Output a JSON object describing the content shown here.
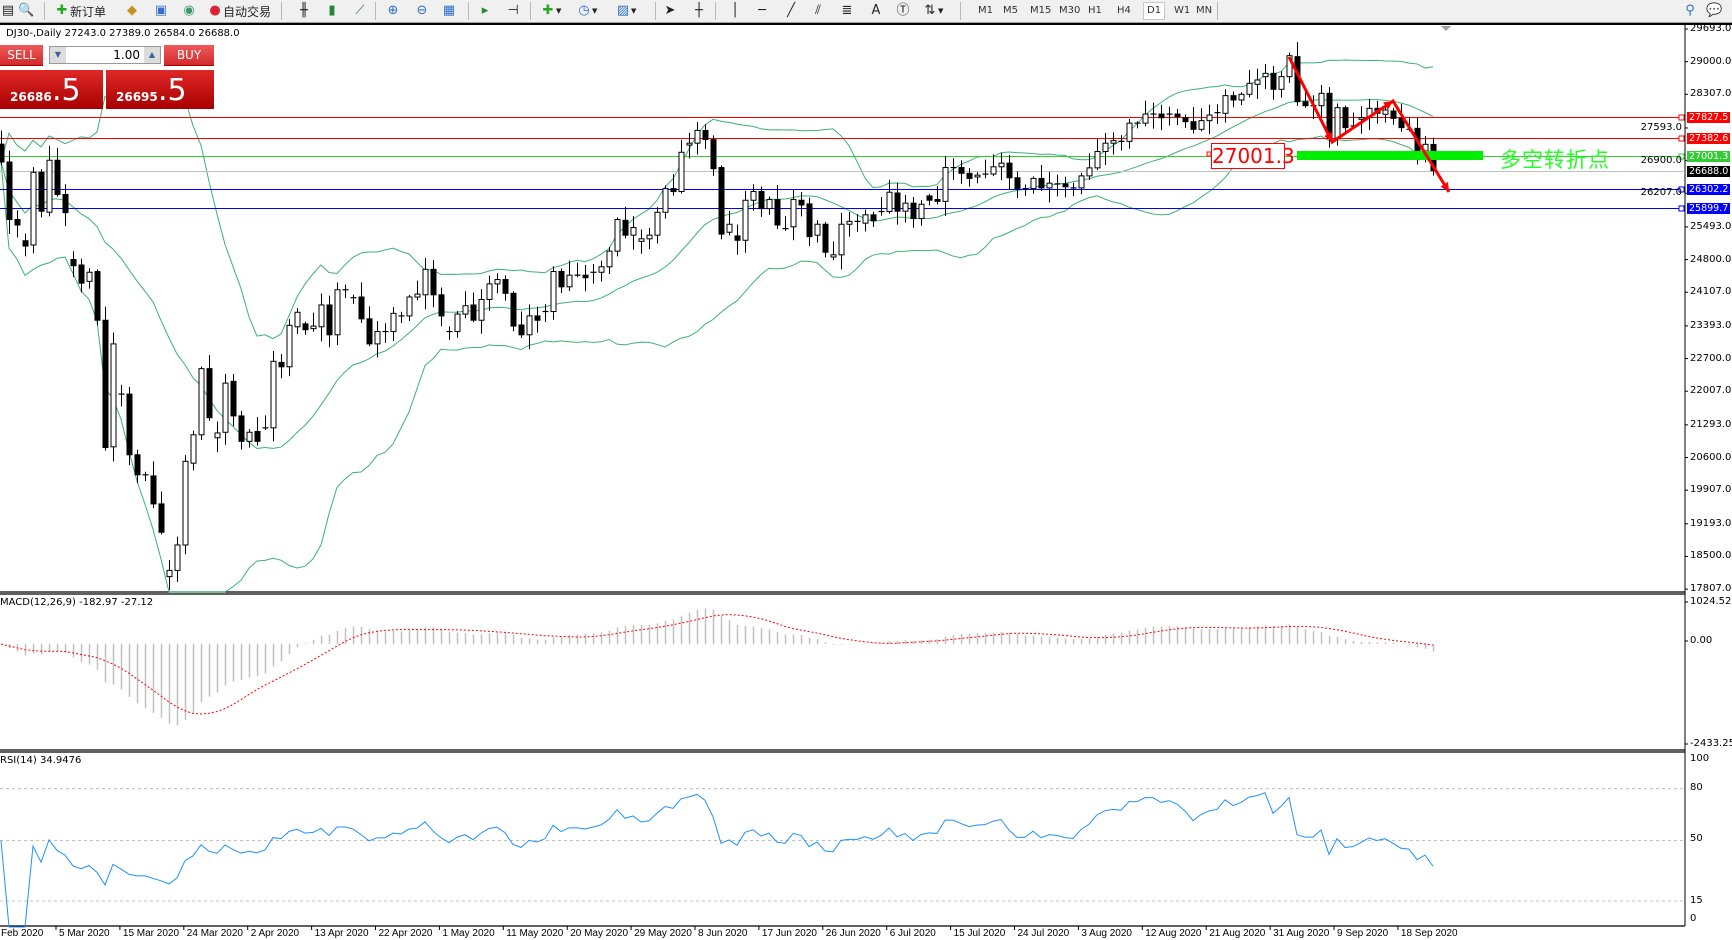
{
  "toolbar": {
    "new_order_label": "新订单",
    "auto_trading_label": "自动交易",
    "text_tool_label": "A",
    "timeframes": [
      "M1",
      "M5",
      "M15",
      "M30",
      "H1",
      "H4",
      "D1",
      "W1",
      "MN"
    ],
    "selected_timeframe": "D1"
  },
  "chart": {
    "header": "DJ30-,Daily  27243.0 27389.0 26584.0 26688.0",
    "trade_panel": {
      "sell_label": "SELL",
      "buy_label": "BUY",
      "lot": "1.00",
      "sell_price_main": "26686",
      "sell_price_frac": ".5",
      "buy_price_main": "26695",
      "buy_price_frac": ".5"
    },
    "price_ticks": [
      "29693.0",
      "29000.0",
      "28307.0",
      "27593.0",
      "26900.0",
      "26207.0",
      "25493.0",
      "24800.0",
      "24107.0",
      "23393.0",
      "22700.0",
      "22007.0",
      "21293.0",
      "20600.0",
      "19907.0",
      "19193.0",
      "18500.0",
      "17807.0"
    ],
    "levels": [
      {
        "price": "27827.5",
        "color": "#ff0000"
      },
      {
        "price": "27382.6",
        "color": "#ff0000"
      },
      {
        "price": "27001.3",
        "color": "#33cc33"
      },
      {
        "price": "26688.0",
        "color": "#000000",
        "line": "#c0c0c0"
      },
      {
        "price": "26302.2",
        "color": "#0000ff"
      },
      {
        "price": "25899.7",
        "color": "#0000ff"
      }
    ],
    "annotation_price_label": "27001.3",
    "annotation_text": "多空转折点",
    "colors": {
      "bollinger": "#3cb371",
      "bull_body": "#ffffff",
      "bear_body": "#000000",
      "arrow": "#ff0000",
      "zone": "#00ee00",
      "macd_hist": "#c0c0c0",
      "macd_signal": "#ff0000",
      "rsi": "#1e90ff"
    },
    "bars_open_close": [
      [
        27250,
        26870
      ],
      [
        26870,
        25650
      ],
      [
        25650,
        25534
      ],
      [
        25200,
        25087
      ],
      [
        25110,
        26653
      ],
      [
        26653,
        25827
      ],
      [
        25805,
        26908
      ],
      [
        26908,
        26182
      ],
      [
        26182,
        25797
      ],
      [
        24801,
        24670
      ],
      [
        24685,
        24300
      ],
      [
        24338,
        24531
      ],
      [
        24546,
        23513
      ],
      [
        23513,
        20812
      ],
      [
        20827,
        23011
      ],
      [
        21946,
        21946
      ],
      [
        21946,
        20658
      ],
      [
        20658,
        20233
      ],
      [
        20233,
        20233
      ],
      [
        20210,
        19616
      ],
      [
        19616,
        19014
      ],
      [
        18073,
        18204
      ],
      [
        18204,
        18744
      ],
      [
        18744,
        20519
      ],
      [
        20480,
        21082
      ],
      [
        21082,
        22486
      ],
      [
        22486,
        21445
      ],
      [
        21020,
        21121
      ],
      [
        21136,
        22178
      ],
      [
        22216,
        21483
      ],
      [
        21483,
        20943
      ],
      [
        20943,
        21136
      ],
      [
        21152,
        20943
      ],
      [
        21229,
        21229
      ],
      [
        21229,
        22641
      ],
      [
        22618,
        22525
      ],
      [
        22525,
        23405
      ],
      [
        23374,
        23682
      ],
      [
        23436,
        23312
      ],
      [
        23335,
        23389
      ],
      [
        23374,
        23837
      ],
      [
        23837,
        23204
      ],
      [
        23204,
        24160
      ],
      [
        24160,
        24160
      ],
      [
        23991,
        23991
      ],
      [
        24006,
        23543
      ],
      [
        23543,
        23011
      ],
      [
        23011,
        23273
      ],
      [
        23273,
        23273
      ],
      [
        23273,
        23659
      ],
      [
        23605,
        23605
      ],
      [
        23605,
        24006
      ],
      [
        24006,
        24068
      ],
      [
        24053,
        24593
      ],
      [
        24593,
        24053
      ],
      [
        24053,
        23605
      ],
      [
        23273,
        23273
      ],
      [
        23273,
        23644
      ],
      [
        23644,
        23821
      ],
      [
        23837,
        23513
      ],
      [
        23513,
        23953
      ],
      [
        23953,
        24284
      ],
      [
        24284,
        24377
      ],
      [
        24377,
        24084
      ],
      [
        24084,
        23389
      ],
      [
        23412,
        23204
      ],
      [
        23204,
        23605
      ],
      [
        23605,
        23513
      ],
      [
        23698,
        23698
      ],
      [
        23698,
        24547
      ],
      [
        24547,
        24222
      ],
      [
        24222,
        24469
      ],
      [
        24469,
        24469
      ],
      [
        24469,
        24415
      ],
      [
        24531,
        24531
      ],
      [
        24531,
        24647
      ],
      [
        24647,
        24979
      ],
      [
        24979,
        25650
      ],
      [
        25634,
        25318
      ],
      [
        25318,
        25480
      ],
      [
        25187,
        25241
      ],
      [
        25241,
        25318
      ],
      [
        25318,
        25804
      ],
      [
        25804,
        26306
      ],
      [
        26306,
        26244
      ],
      [
        26244,
        27077
      ],
      [
        27231,
        27270
      ],
      [
        27270,
        27540
      ],
      [
        27540,
        27347
      ],
      [
        27347,
        26730
      ],
      [
        26753,
        25341
      ],
      [
        25380,
        25550
      ],
      [
        25303,
        25210
      ],
      [
        25210,
        26059
      ],
      [
        26059,
        26244
      ],
      [
        26244,
        25881
      ],
      [
        25881,
        26074
      ],
      [
        26074,
        25534
      ],
      [
        25457,
        25457
      ],
      [
        25496,
        26074
      ],
      [
        26059,
        25959
      ],
      [
        25982,
        25287
      ],
      [
        25318,
        25550
      ],
      [
        25550,
        24956
      ],
      [
        24855,
        24901
      ],
      [
        24901,
        25550
      ],
      [
        25550,
        25611
      ],
      [
        25611,
        25611
      ],
      [
        25573,
        25750
      ],
      [
        25750,
        25627
      ],
      [
        25820,
        25820
      ],
      [
        25820,
        26229
      ],
      [
        26213,
        25827
      ],
      [
        25827,
        25997
      ],
      [
        25997,
        25673
      ],
      [
        25673,
        25974
      ],
      [
        26151,
        26059
      ],
      [
        26074,
        26035
      ],
      [
        26035,
        26753
      ],
      [
        26753,
        26753
      ],
      [
        26753,
        26630
      ],
      [
        26630,
        26522
      ],
      [
        26553,
        26591
      ],
      [
        26614,
        26614
      ],
      [
        26614,
        26769
      ],
      [
        26769,
        26846
      ],
      [
        26846,
        26537
      ],
      [
        26537,
        26306
      ],
      [
        26306,
        26306
      ],
      [
        26306,
        26522
      ],
      [
        26522,
        26321
      ],
      [
        26321,
        26421
      ],
      [
        26406,
        26406
      ],
      [
        26406,
        26344
      ],
      [
        26321,
        26321
      ],
      [
        26321,
        26576
      ],
      [
        26576,
        26746
      ],
      [
        26746,
        27093
      ],
      [
        27093,
        27270
      ],
      [
        27270,
        27324
      ],
      [
        27309,
        27309
      ],
      [
        27309,
        27695
      ],
      [
        27695,
        27695
      ],
      [
        27695,
        27888
      ],
      [
        27888,
        27888
      ],
      [
        27888,
        27810
      ],
      [
        27864,
        27888
      ],
      [
        27888,
        27833
      ],
      [
        27812,
        27727
      ],
      [
        27727,
        27564
      ],
      [
        27564,
        27748
      ],
      [
        27748,
        27868
      ],
      [
        27918,
        27918
      ],
      [
        27904,
        28279
      ],
      [
        28279,
        28187
      ],
      [
        28187,
        28307
      ],
      [
        28307,
        28540
      ],
      [
        28519,
        28611
      ],
      [
        28681,
        28752
      ],
      [
        28752,
        28413
      ],
      [
        28413,
        28682
      ],
      [
        28682,
        29127
      ],
      [
        29106,
        28151
      ],
      [
        28151,
        28066
      ],
      [
        28066,
        28066
      ],
      [
        28066,
        28328
      ],
      [
        28328,
        27373
      ],
      [
        27373,
        28024
      ],
      [
        28024,
        27600
      ],
      [
        27635,
        27635
      ],
      [
        27777,
        27812
      ],
      [
        27812,
        28010
      ],
      [
        28010,
        27904
      ],
      [
        27883,
        27974
      ],
      [
        27953,
        27797
      ],
      [
        27797,
        27600
      ],
      [
        27564,
        27564
      ],
      [
        27585,
        27104
      ],
      [
        27104,
        27246
      ],
      [
        27243,
        26688
      ]
    ],
    "last_bar": {
      "open": 27243.0,
      "high": 27389.0,
      "low": 26584.0,
      "close": 26688.0
    }
  },
  "macd": {
    "header": "MACD(12,26,9) -182.97 -27.12",
    "ticks": [
      "1024.52",
      "0.00",
      "-2433.25"
    ]
  },
  "rsi": {
    "header": "RSI(14) 34.9476",
    "ticks": [
      "100",
      "80",
      "50",
      "15",
      "0"
    ],
    "levels": [
      80,
      50,
      15
    ]
  },
  "dates": [
    "Feb 2020",
    "5 Mar 2020",
    "15 Mar 2020",
    "24 Mar 2020",
    "2 Apr 2020",
    "13 Apr 2020",
    "22 Apr 2020",
    "1 May 2020",
    "11 May 2020",
    "20 May 2020",
    "29 May 2020",
    "8 Jun 2020",
    "17 Jun 2020",
    "26 Jun 2020",
    "6 Jul 2020",
    "15 Jul 2020",
    "24 Jul 2020",
    "3 Aug 2020",
    "12 Aug 2020",
    "21 Aug 2020",
    "31 Aug 2020",
    "9 Sep 2020",
    "18 Sep 2020"
  ]
}
